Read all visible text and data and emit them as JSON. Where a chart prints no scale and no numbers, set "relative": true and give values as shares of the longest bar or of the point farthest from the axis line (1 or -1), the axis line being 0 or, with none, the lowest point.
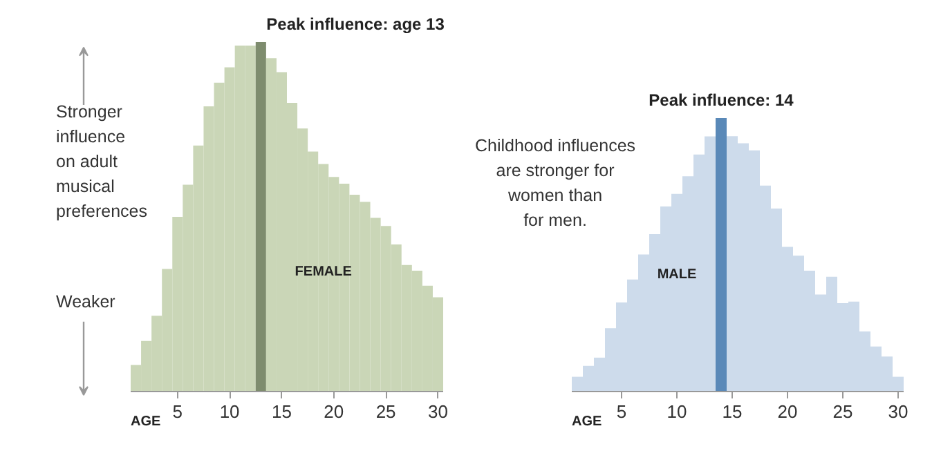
{
  "chart_data": [
    {
      "type": "bar",
      "relative": true,
      "xlabel": "AGE",
      "x": [
        1,
        2,
        3,
        4,
        5,
        6,
        7,
        8,
        9,
        10,
        11,
        12,
        13,
        14,
        15,
        16,
        17,
        18,
        19,
        20,
        21,
        22,
        23,
        24,
        25,
        26,
        27,
        28,
        29,
        30
      ],
      "xlim": [
        0.5,
        30.5
      ],
      "xticks": [
        5,
        10,
        15,
        20,
        25,
        30
      ],
      "tick_labels": "x",
      "grid": false,
      "annotations": [
        "Stronger\ninfluence\non adult\nmusical\npreferences",
        "Weaker",
        {
          "text": "Peak influence: age 13",
          "x": 13,
          "y": 1
        }
      ],
      "series": [
        {
          "name": "FEMALE",
          "colors": [
            "#cad6b7",
            "#cad6b7",
            "#cad6b7",
            "#cad6b7",
            "#cad6b7",
            "#cad6b7",
            "#cad6b7",
            "#cad6b7",
            "#cad6b7",
            "#cad6b7",
            "#cad6b7",
            "#cad6b7",
            "#7e8c6e",
            "#cad6b7",
            "#cad6b7",
            "#cad6b7",
            "#cad6b7",
            "#cad6b7",
            "#cad6b7",
            "#cad6b7",
            "#cad6b7",
            "#cad6b7",
            "#cad6b7",
            "#cad6b7",
            "#cad6b7",
            "#cad6b7",
            "#cad6b7",
            "#cad6b7",
            "#cad6b7",
            "#cad6b7"
          ],
          "values": [
            0.076,
            0.145,
            0.217,
            0.351,
            0.5,
            0.592,
            0.704,
            0.816,
            0.884,
            0.928,
            0.99,
            0.99,
            1.0,
            0.954,
            0.914,
            0.826,
            0.753,
            0.687,
            0.651,
            0.614,
            0.595,
            0.563,
            0.543,
            0.497,
            0.474,
            0.421,
            0.362,
            0.346,
            0.303,
            0.27
          ]
        }
      ]
    },
    {
      "type": "bar",
      "relative": true,
      "xlabel": "AGE",
      "x": [
        1,
        2,
        3,
        4,
        5,
        6,
        7,
        8,
        9,
        10,
        11,
        12,
        13,
        14,
        15,
        16,
        17,
        18,
        19,
        20,
        21,
        22,
        23,
        24,
        25,
        26,
        27,
        28,
        29,
        30
      ],
      "xlim": [
        0.5,
        30.5
      ],
      "xticks": [
        5,
        10,
        15,
        20,
        25,
        30
      ],
      "tick_labels": "x",
      "grid": false,
      "annotations": [
        "Childhood influences\nare stronger for\nwomen than\nfor men.",
        {
          "text": "Peak influence: 14",
          "x": 14,
          "y": 1
        }
      ],
      "series": [
        {
          "name": "MALE",
          "colors": [
            "#cddbeb",
            "#cddbeb",
            "#cddbeb",
            "#cddbeb",
            "#cddbeb",
            "#cddbeb",
            "#cddbeb",
            "#cddbeb",
            "#cddbeb",
            "#cddbeb",
            "#cddbeb",
            "#cddbeb",
            "#cddbeb",
            "#5a89b8",
            "#cddbeb",
            "#cddbeb",
            "#cddbeb",
            "#cddbeb",
            "#cddbeb",
            "#cddbeb",
            "#cddbeb",
            "#cddbeb",
            "#cddbeb",
            "#cddbeb",
            "#cddbeb",
            "#cddbeb",
            "#cddbeb",
            "#cddbeb",
            "#cddbeb",
            "#cddbeb"
          ],
          "values": [
            0.054,
            0.094,
            0.124,
            0.232,
            0.326,
            0.41,
            0.501,
            0.576,
            0.677,
            0.723,
            0.787,
            0.867,
            0.933,
            1.0,
            0.934,
            0.908,
            0.882,
            0.753,
            0.669,
            0.529,
            0.497,
            0.442,
            0.355,
            0.42,
            0.323,
            0.329,
            0.22,
            0.165,
            0.128,
            0.054
          ]
        }
      ]
    }
  ]
}
